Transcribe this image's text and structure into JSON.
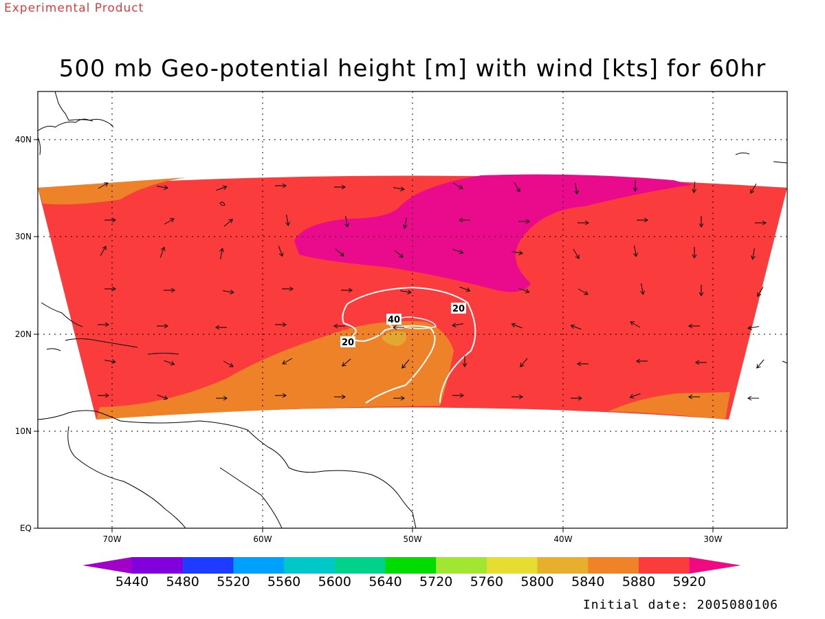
{
  "header": {
    "banner": "Experimental Product",
    "title": "500 mb Geo-potential height [m] with wind [kts] for 60hr"
  },
  "footer": {
    "initial_date": "Initial date: 2005080106"
  },
  "map": {
    "longitude_labels": [
      "70W",
      "60W",
      "50W",
      "40W",
      "30W"
    ],
    "latitude_labels": [
      "40N",
      "30N",
      "20N",
      "10N",
      "EQ"
    ],
    "contour_labels": [
      "20",
      "40",
      "20"
    ],
    "colors": {
      "fill_5840": "#e2a832",
      "fill_5880": "#ee8228",
      "fill_5920": "#fa3c3c",
      "fill_above_5920": "#ea0a8c",
      "wind_contour": "#ffffff",
      "coastline": "#000000"
    }
  },
  "colorbar": {
    "labels": [
      "5440",
      "5480",
      "5520",
      "5560",
      "5600",
      "5640",
      "5720",
      "5760",
      "5800",
      "5840",
      "5880",
      "5920"
    ],
    "colors": [
      "#a000c8",
      "#8200dc",
      "#1e3cff",
      "#00a0ff",
      "#00c8c8",
      "#00d28c",
      "#00dc00",
      "#a0e632",
      "#e6dc32",
      "#e6af2d",
      "#f08228",
      "#fa3c3c",
      "#f00a82"
    ]
  }
}
